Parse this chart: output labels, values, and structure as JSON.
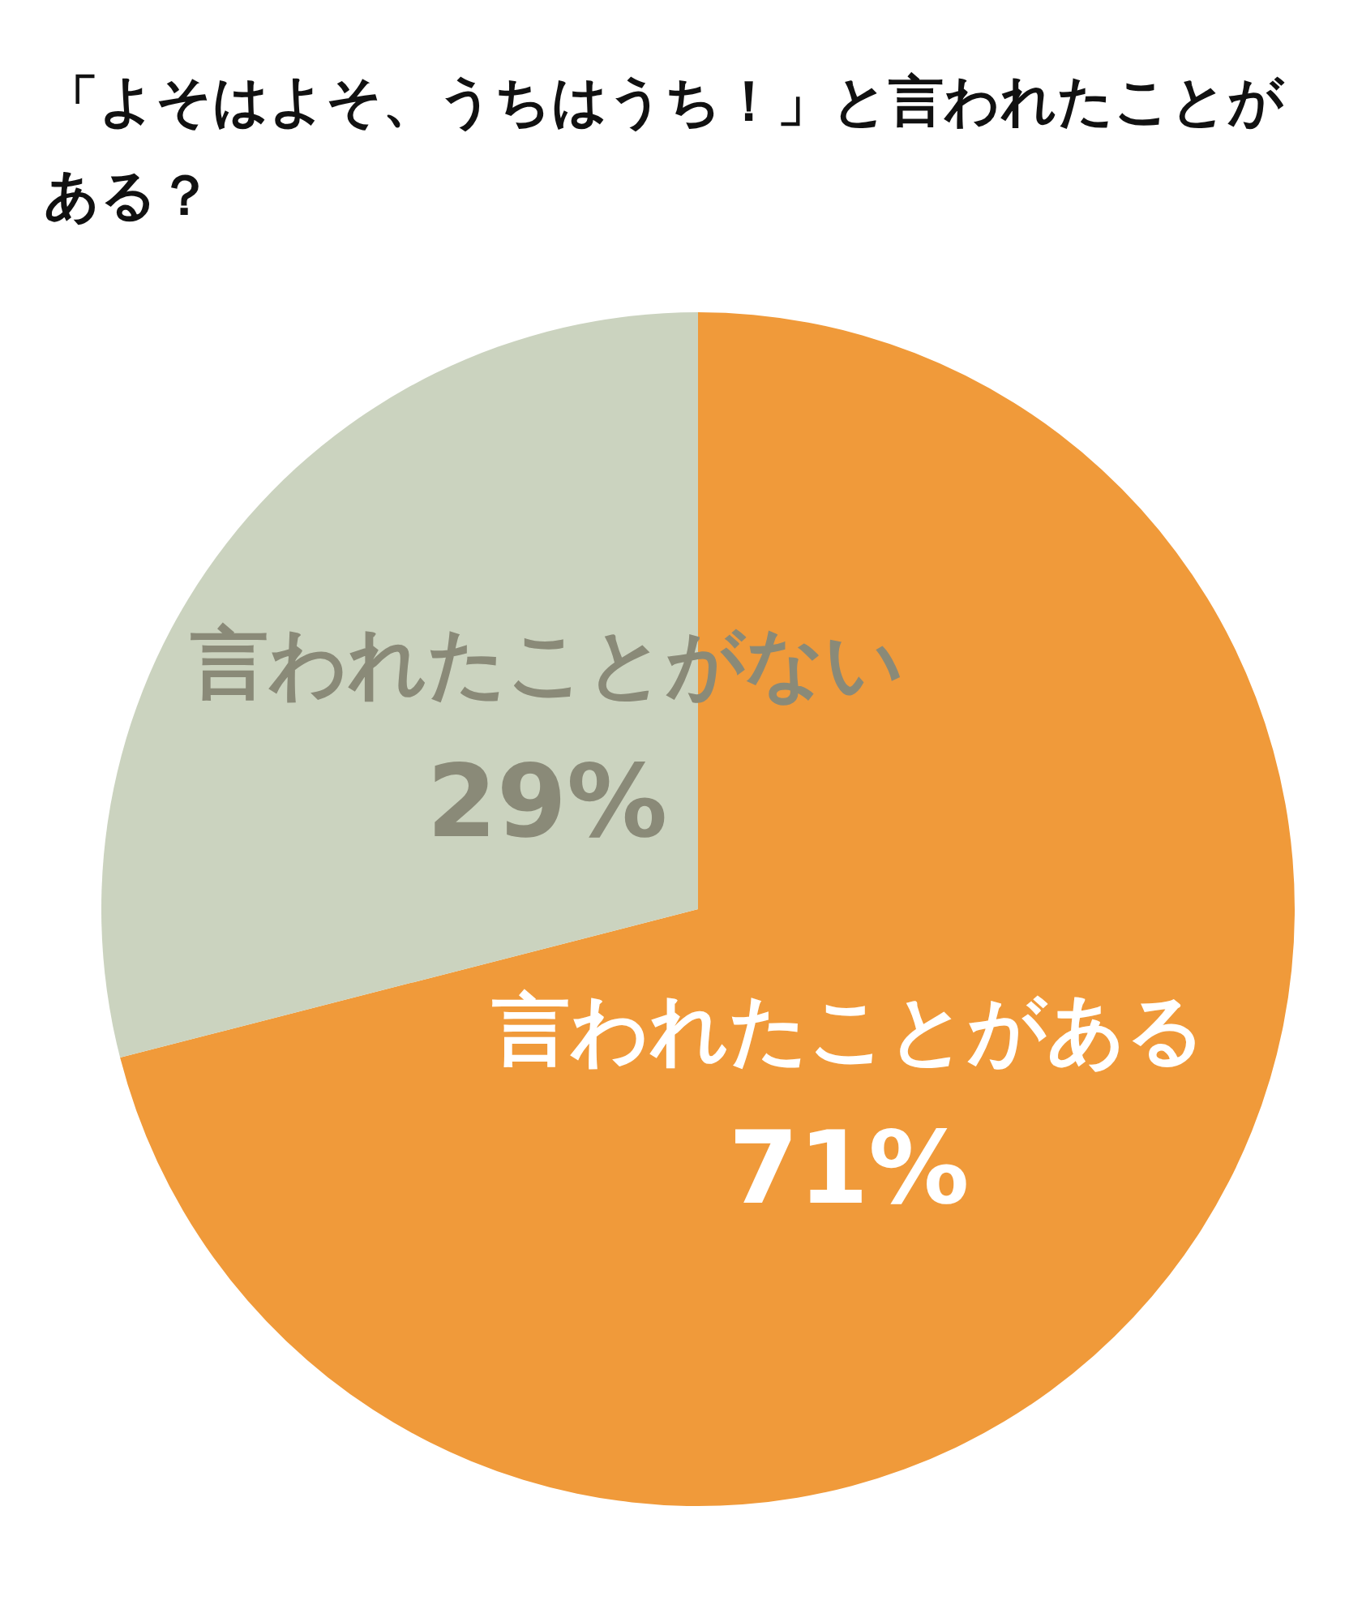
{
  "chart_data": {
    "type": "pie",
    "title": "「よそはよそ、うちはうち！」と言われたことがある？",
    "categories": [
      "言われたことがある",
      "言われたことがない"
    ],
    "values": [
      71,
      29
    ],
    "value_labels": [
      "71%",
      "29%"
    ],
    "colors": [
      "#f09a3a",
      "#cbd3bf"
    ]
  }
}
